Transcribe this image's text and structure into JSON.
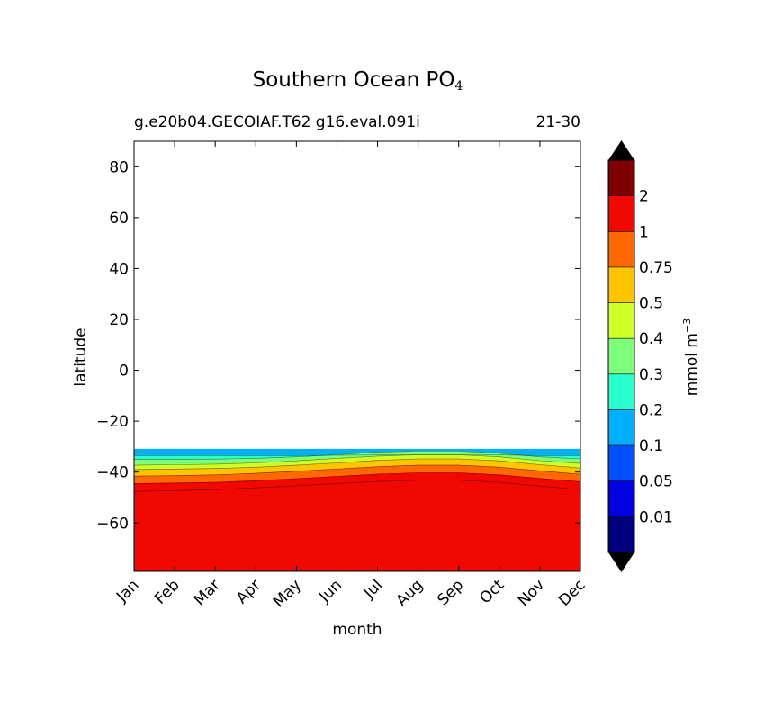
{
  "chart_data": {
    "type": "contourf",
    "title_main": "Southern Ocean PO",
    "title_sub": "4",
    "subtitle_left": "g.e20b04.GECOIAF.T62 g16.eval.091i",
    "subtitle_right": "21-30",
    "xlabel": "month",
    "ylabel": "latitude",
    "months": [
      "Jan",
      "Feb",
      "Mar",
      "Apr",
      "May",
      "Jun",
      "Jul",
      "Aug",
      "Sep",
      "Oct",
      "Nov",
      "Dec"
    ],
    "xlim": [
      1,
      12
    ],
    "ylim": [
      -79,
      90
    ],
    "yticks": [
      -60,
      -40,
      -20,
      0,
      20,
      40,
      60,
      80
    ],
    "ytick_labels": [
      "−60",
      "−40",
      "−20",
      "0",
      "20",
      "40",
      "60",
      "80"
    ],
    "data_lat_range": [
      -79,
      -31
    ],
    "contour_boundaries": [
      {
        "level": "0.1",
        "latitudes": [
          -33.5,
          -33.5,
          -33.5,
          -33.5,
          -33.5,
          -33.4,
          -33.3,
          -33.2,
          -33.2,
          -33.3,
          -33.5,
          -33.5
        ]
      },
      {
        "level": "0.2",
        "latitudes": [
          -35.0,
          -35.0,
          -34.9,
          -34.6,
          -34.0,
          -33.2,
          -32.2,
          -31.8,
          -31.8,
          -32.6,
          -34.0,
          -34.8
        ]
      },
      {
        "level": "0.3",
        "latitudes": [
          -37.3,
          -37.1,
          -36.9,
          -36.4,
          -35.6,
          -34.6,
          -33.7,
          -33.2,
          -33.2,
          -34.0,
          -35.5,
          -36.6
        ]
      },
      {
        "level": "0.4",
        "latitudes": [
          -39.0,
          -38.8,
          -38.6,
          -38.1,
          -37.3,
          -36.4,
          -35.4,
          -34.8,
          -34.8,
          -35.6,
          -37.1,
          -38.4
        ]
      },
      {
        "level": "0.5",
        "latitudes": [
          -41.6,
          -41.4,
          -41.1,
          -40.5,
          -39.7,
          -38.8,
          -37.9,
          -37.3,
          -37.3,
          -38.1,
          -39.5,
          -40.9
        ]
      },
      {
        "level": "0.75",
        "latitudes": [
          -44.5,
          -44.3,
          -44.0,
          -43.4,
          -42.6,
          -41.7,
          -40.8,
          -40.3,
          -40.3,
          -41.1,
          -42.5,
          -43.8
        ]
      },
      {
        "level": "1",
        "latitudes": [
          -47.6,
          -47.3,
          -46.9,
          -46.2,
          -45.4,
          -44.5,
          -43.7,
          -43.2,
          -43.2,
          -44.0,
          -45.5,
          -46.9
        ]
      }
    ],
    "colorbar": {
      "label": "mmol m",
      "label_sup": "−3",
      "levels": [
        "0.01",
        "0.05",
        "0.1",
        "0.2",
        "0.3",
        "0.4",
        "0.5",
        "0.75",
        "1",
        "2"
      ],
      "colors": [
        "#00007f",
        "#0000e0",
        "#0050ff",
        "#00b0ff",
        "#29ffce",
        "#7dff7a",
        "#ceff29",
        "#ffc400",
        "#ff6800",
        "#f10800",
        "#7f0000"
      ],
      "under_color": "#000000",
      "over_color": "#000000"
    }
  }
}
